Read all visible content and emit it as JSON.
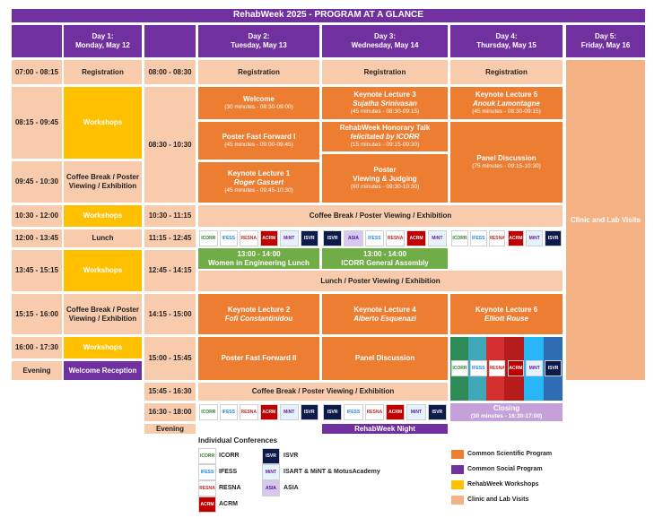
{
  "title": "RehabWeek 2025 - PROGRAM AT A GLANCE",
  "days": [
    {
      "label": "Day 1:",
      "date": "Monday, May 12"
    },
    {
      "label": "Day 2:",
      "date": "Tuesday, May 13"
    },
    {
      "label": "Day 3:",
      "date": "Wednesday, May 14"
    },
    {
      "label": "Day 4:",
      "date": "Thursday, May 15"
    },
    {
      "label": "Day 5:",
      "date": "Friday, May 16"
    }
  ],
  "monday": {
    "times": [
      "07:00 - 08:15",
      "08:15 - 09:45",
      "09:45 - 10:30",
      "10:30 - 12:00",
      "12:00 - 13:45",
      "13:45 - 15:15",
      "15:15 - 16:00",
      "16:00 - 17:30",
      "Evening"
    ],
    "sessions": [
      "Registration",
      "Workshops",
      "Coffee Break / Poster Viewing / Exhibition",
      "Workshops",
      "Lunch",
      "Workshops",
      "Coffee Break / Poster Viewing / Exhibition",
      "Workshops",
      "Welcome Reception"
    ]
  },
  "times2": [
    "08:00 - 08:30",
    "08:30 - 10:30",
    "10:30 - 11:15",
    "11:15 - 12:45",
    "12:45 - 14:15",
    "14:15 - 15:00",
    "15:00 - 15:45",
    "15:45 - 16:30",
    "16:30 - 18:00",
    "Evening"
  ],
  "registration": "Registration",
  "tue": {
    "welcome": "Welcome",
    "welcome_sub": "(30 minutes - 08:30-09:00)",
    "pff1": "Poster Fast Forward I",
    "pff1_sub": "(45 minutes - 09:00-09:45)",
    "kl1": "Keynote Lecture 1",
    "kl1_name": "Roger Gassert",
    "kl1_sub": "(45 minutes - 09:45-10:30)",
    "women_time": "13:00 - 14:00",
    "women": "Women in Engineering Lunch",
    "kl2": "Keynote Lecture 2",
    "kl2_name": "Fofi Constantinidou",
    "pff2": "Poster Fast Forward II"
  },
  "wed": {
    "kl3": "Keynote Lecture 3",
    "kl3_name": "Sujatha Srinivasan",
    "kl3_sub": "(45 minutes - 08:30-09:15)",
    "hon": "RehabWeek Honorary Talk",
    "hon_by": "felicitated by ICORR",
    "hon_sub": "(15 minutes - 09:15-09:30)",
    "poster": "Poster",
    "poster2": "Viewing & Judging",
    "poster_sub": "(60 minutes - 09:30-10:30)",
    "icorr_time": "13:00 - 14:00",
    "icorr": "ICORR General Assembly",
    "kl4": "Keynote Lecture 4",
    "kl4_name": "Alberto Esquenazi",
    "panel": "Panel Discussion",
    "night": "RehabWeek Night"
  },
  "thu": {
    "kl5": "Keynote Lecture 5",
    "kl5_name": "Anouk Lamontagne",
    "kl5_sub": "(45 minutes - 08:30-09:15)",
    "panel": "Panel Discussion",
    "panel_sub": "(75 minutes - 09:15-10:30)",
    "kl6": "Keynote Lecture 6",
    "kl6_name": "Elliott Rouse",
    "closing": "Closing",
    "closing_sub": "(30 minutes - 16:30-17:00)"
  },
  "fri": {
    "clinic": "Clinic and Lab Visits"
  },
  "coffee": "Coffee Break / Poster Viewing / Exhibition",
  "lunch_poster": "Lunch / Poster Viewing / Exhibition",
  "logos": {
    "icorr": "ICORR",
    "ifess": "IFESS",
    "resna": "RESNA",
    "acrm": "ACRM",
    "mint": "MiNT",
    "isvr": "ISVR",
    "asia": "ASIA"
  },
  "legend": {
    "heading": "Individual Conferences",
    "icorr": "ICORR",
    "ifess": "IFESS",
    "resna": "RESNA",
    "acrm": "ACRM",
    "isvr": "ISVR",
    "isart": "ISART & MiNT & MotusAcademy",
    "asia": "ASIA",
    "common_sci": "Common Scientific Program",
    "common_soc": "Common Social Program",
    "workshops": "RehabWeek Workshops",
    "clinic": "Clinic and Lab Visits"
  },
  "colors": {
    "purple": "#7030a0",
    "orange": "#ed7d31",
    "peach": "#f8cbad",
    "yellow": "#ffc000",
    "green": "#70ad47"
  }
}
